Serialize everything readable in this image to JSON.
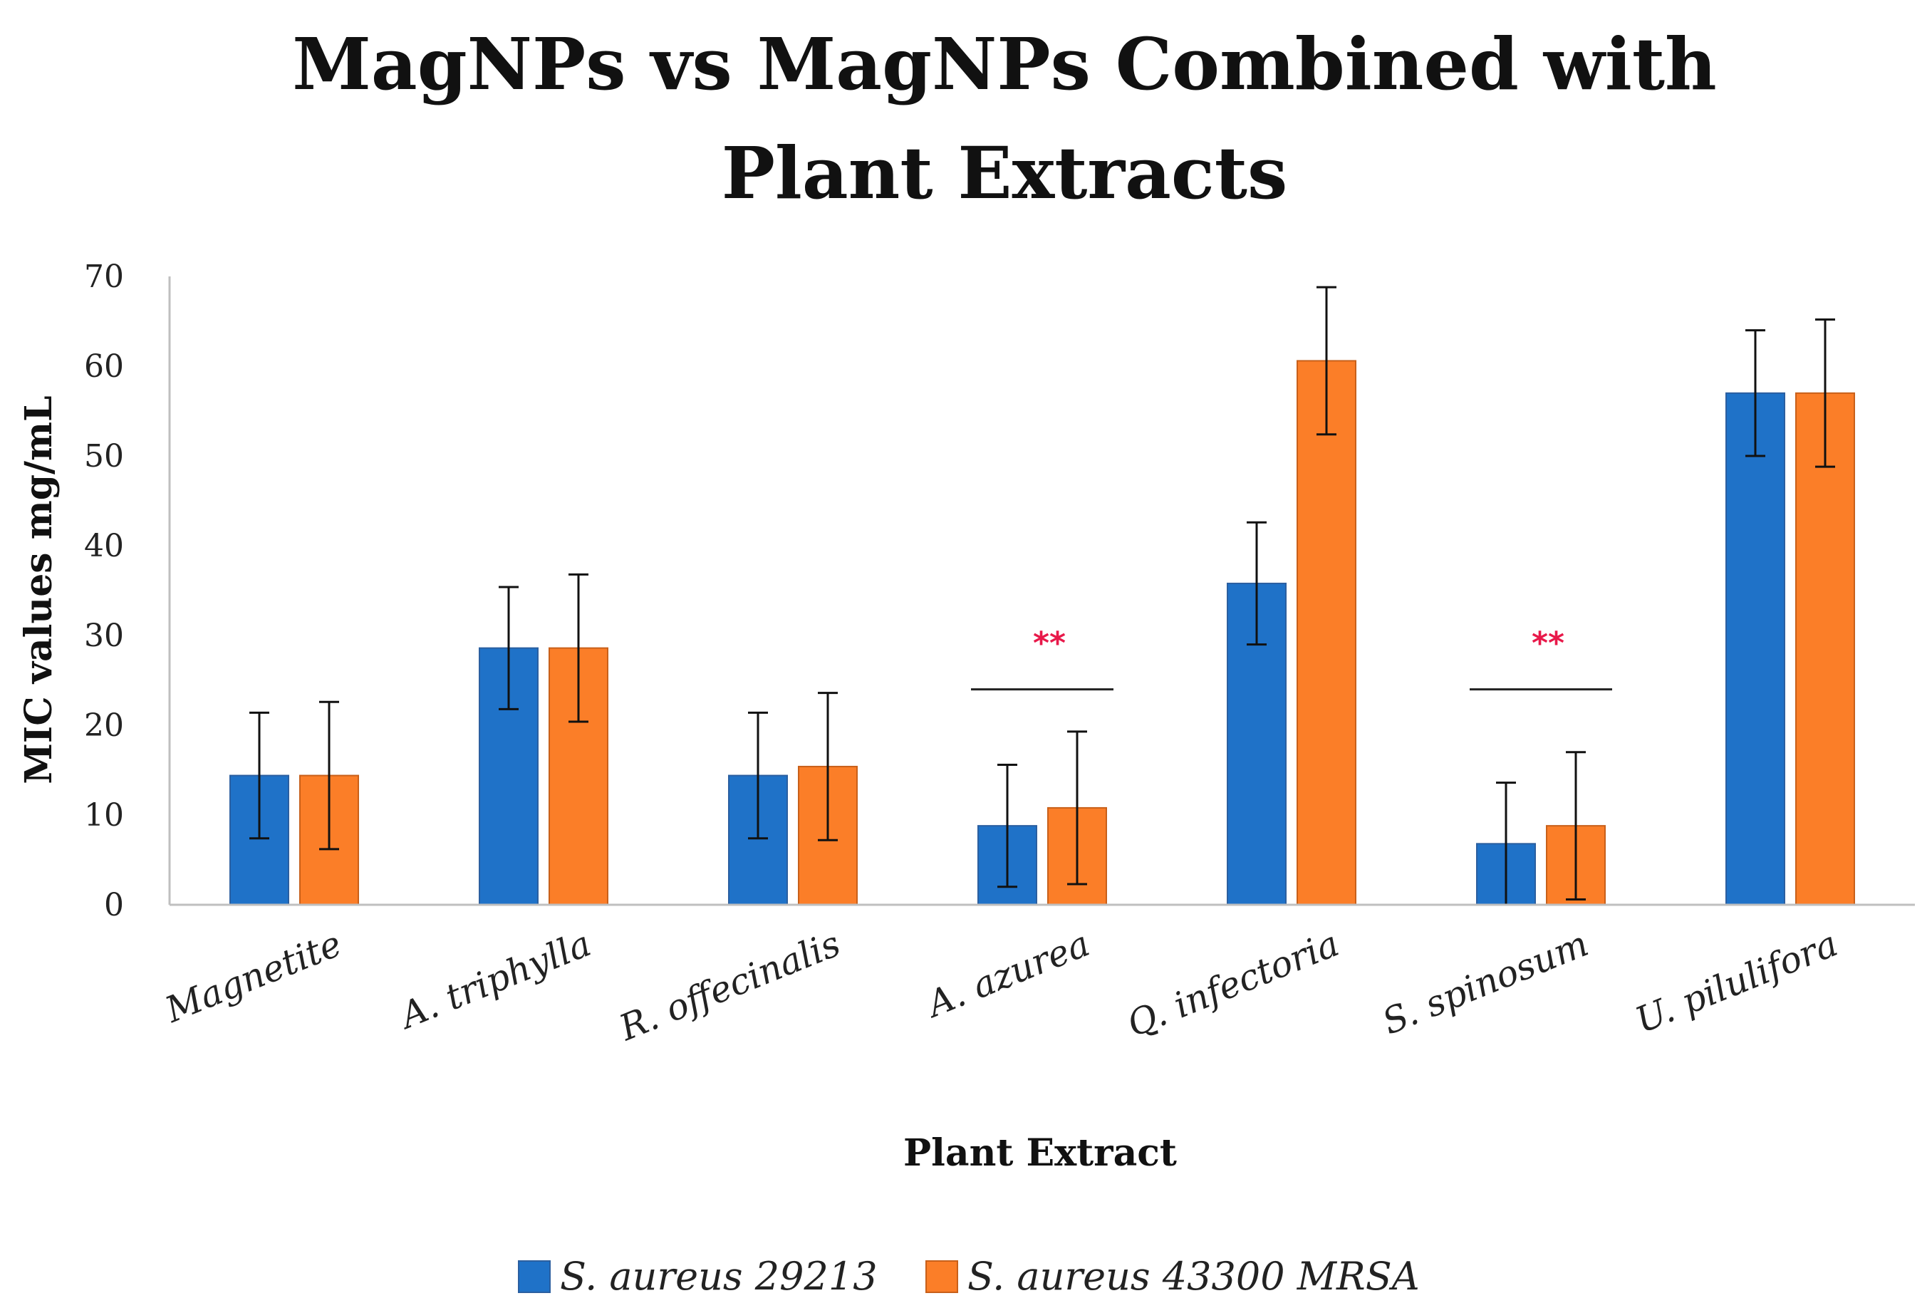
{
  "chart_data": {
    "type": "bar",
    "title_lines": [
      "MagNPs vs MagNPs Combined with",
      "Plant Extracts"
    ],
    "xlabel": "Plant Extract",
    "ylabel": "MIC values mg/mL",
    "ylim": [
      0,
      70
    ],
    "yticks": [
      0,
      10,
      20,
      30,
      40,
      50,
      60,
      70
    ],
    "grid": false,
    "legend_position": "bottom",
    "categories": [
      "Magnetite",
      "A. triphylla",
      "R. offecinalis",
      "A. azurea",
      "Q. infectoria",
      "S. spinosum",
      "U. pilulifora"
    ],
    "series": [
      {
        "name": "S. aureus 29213",
        "color": "#1f72c8",
        "values": [
          14.4,
          28.6,
          14.4,
          8.8,
          35.8,
          6.8,
          57.0
        ],
        "error": [
          7.0,
          6.8,
          7.0,
          6.8,
          6.8,
          6.8,
          7.0
        ]
      },
      {
        "name": "S. aureus 43300 MRSA",
        "color": "#fb7e28",
        "values": [
          14.4,
          28.6,
          15.4,
          10.8,
          60.6,
          8.8,
          57.0
        ],
        "error": [
          8.2,
          8.2,
          8.2,
          8.5,
          8.2,
          8.2,
          8.2
        ]
      }
    ],
    "annotations": [
      {
        "label": "**",
        "category_index": 3,
        "line_y": 24,
        "color": "#e8194a"
      },
      {
        "label": "**",
        "category_index": 5,
        "line_y": 24,
        "color": "#e8194a"
      }
    ]
  }
}
